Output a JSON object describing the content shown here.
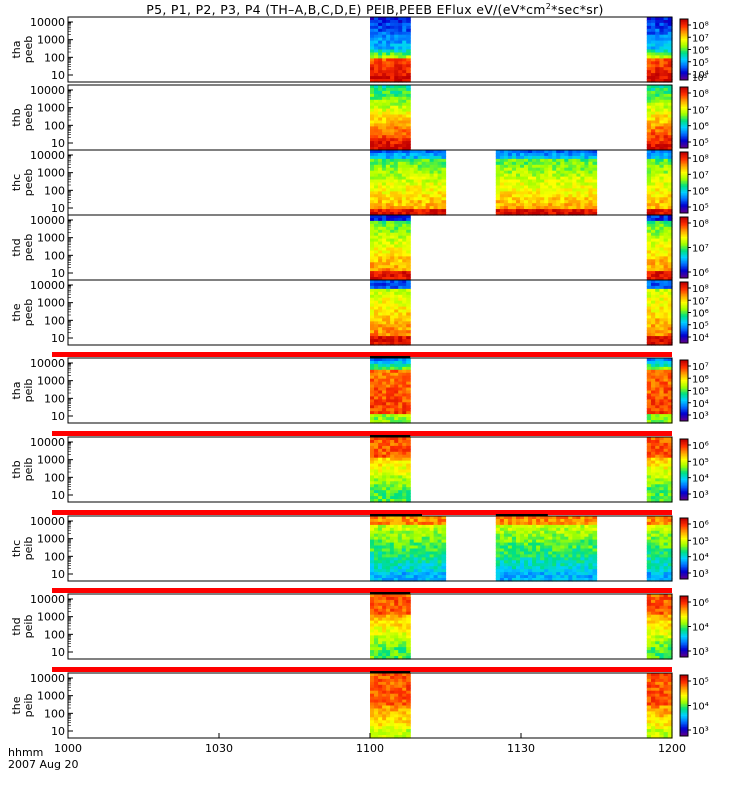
{
  "title": {
    "prefix": "P5, P1, P2, P3, P4 (TH–A,B,C,D,E) PEIB,PEEB EFlux eV/(eV*cm",
    "sup": "2",
    "suffix": "*sec*sr)"
  },
  "footer": {
    "time_format": "hhmm",
    "date": "2007 Aug 20"
  },
  "colors": {
    "colorbar_stops": [
      "#5a0090",
      "#0000d0",
      "#0070ff",
      "#00d0ff",
      "#00e080",
      "#a0ff00",
      "#ffff00",
      "#ffa000",
      "#ff3000",
      "#c00000"
    ],
    "gap_band": "#ff0000"
  },
  "chart_data": {
    "type": "heatmap",
    "x_axis": {
      "ticks": [
        "1000",
        "1030",
        "1100",
        "1130",
        "1200"
      ],
      "range": [
        "10:00",
        "12:00"
      ],
      "date": "2007 Aug 20"
    },
    "panels": [
      {
        "id": "thaPEEB",
        "ylabel": [
          "tha",
          "peeb"
        ],
        "yticks": [
          "10000",
          "1000",
          "100",
          "10"
        ],
        "cbar": [
          "10⁴",
          "10⁵",
          "10⁶",
          "10⁷",
          "10⁸"
        ],
        "cbar_extra": "10³",
        "data_blocks": [
          [
            "11:00",
            "11:08"
          ],
          [
            "11:55",
            "12:00"
          ]
        ],
        "profile": "peeb_a"
      },
      {
        "id": "thbPEEB",
        "ylabel": [
          "thb",
          "peeb"
        ],
        "yticks": [
          "10000",
          "1000",
          "100",
          "10"
        ],
        "cbar": [
          "10⁵",
          "10⁶",
          "10⁷",
          "10⁸"
        ],
        "data_blocks": [
          [
            "11:00",
            "11:08"
          ],
          [
            "11:55",
            "12:00"
          ]
        ],
        "profile": "peeb_b"
      },
      {
        "id": "thcPEEB",
        "ylabel": [
          "thc",
          "peeb"
        ],
        "yticks": [
          "10000",
          "1000",
          "100",
          "10"
        ],
        "cbar": [
          "10⁵",
          "10⁶",
          "10⁷",
          "10⁸"
        ],
        "data_blocks": [
          [
            "11:00",
            "11:15"
          ],
          [
            "11:25",
            "11:45"
          ],
          [
            "11:55",
            "12:00"
          ]
        ],
        "profile": "peeb_c"
      },
      {
        "id": "thdPEEB",
        "ylabel": [
          "thd",
          "peeb"
        ],
        "yticks": [
          "10000",
          "1000",
          "100",
          "10"
        ],
        "cbar": [
          "10⁶",
          "10⁷",
          "10⁸"
        ],
        "data_blocks": [
          [
            "11:00",
            "11:08"
          ],
          [
            "11:55",
            "12:00"
          ]
        ],
        "profile": "peeb_d"
      },
      {
        "id": "thePEEB",
        "ylabel": [
          "the",
          "peeb"
        ],
        "yticks": [
          "10000",
          "1000",
          "100",
          "10"
        ],
        "cbar": [
          "10⁴",
          "10⁵",
          "10⁶",
          "10⁷",
          "10⁸"
        ],
        "data_blocks": [
          [
            "11:00",
            "11:08"
          ],
          [
            "11:55",
            "12:00"
          ]
        ],
        "profile": "peeb_e"
      },
      {
        "id": "thaPEIB",
        "ylabel": [
          "tha",
          "peib"
        ],
        "yticks": [
          "10000",
          "1000",
          "100",
          "10"
        ],
        "cbar": [
          "10³",
          "10⁴",
          "10⁵",
          "10⁶",
          "10⁷"
        ],
        "data_blocks": [
          [
            "11:00",
            "11:08"
          ],
          [
            "11:55",
            "12:00"
          ]
        ],
        "profile": "peib_a"
      },
      {
        "id": "thbPEIB",
        "ylabel": [
          "thb",
          "peib"
        ],
        "yticks": [
          "10000",
          "1000",
          "100",
          "10"
        ],
        "cbar": [
          "10³",
          "10⁴",
          "10⁵",
          "10⁶"
        ],
        "data_blocks": [
          [
            "11:00",
            "11:08"
          ],
          [
            "11:55",
            "12:00"
          ]
        ],
        "profile": "peib_b"
      },
      {
        "id": "thcPEIB",
        "ylabel": [
          "thc",
          "peib"
        ],
        "yticks": [
          "10000",
          "1000",
          "100",
          "10"
        ],
        "cbar": [
          "10³",
          "10⁴",
          "10⁵",
          "10⁶"
        ],
        "data_blocks": [
          [
            "11:00",
            "11:15"
          ],
          [
            "11:25",
            "11:45"
          ],
          [
            "11:55",
            "12:00"
          ]
        ],
        "profile": "peib_c"
      },
      {
        "id": "thdPEIB",
        "ylabel": [
          "thd",
          "peib"
        ],
        "yticks": [
          "10000",
          "1000",
          "100",
          "10"
        ],
        "cbar": [
          "10³",
          "10⁴",
          "10⁶"
        ],
        "data_blocks": [
          [
            "11:00",
            "11:08"
          ],
          [
            "11:55",
            "12:00"
          ]
        ],
        "profile": "peib_d"
      },
      {
        "id": "thePEIB",
        "ylabel": [
          "the",
          "peib"
        ],
        "yticks": [
          "10000",
          "1000",
          "100",
          "10"
        ],
        "cbar": [
          "10³",
          "10⁴",
          "10⁵"
        ],
        "data_blocks": [
          [
            "11:00",
            "11:08"
          ],
          [
            "11:55",
            "12:00"
          ]
        ],
        "profile": "peib_e"
      }
    ]
  }
}
